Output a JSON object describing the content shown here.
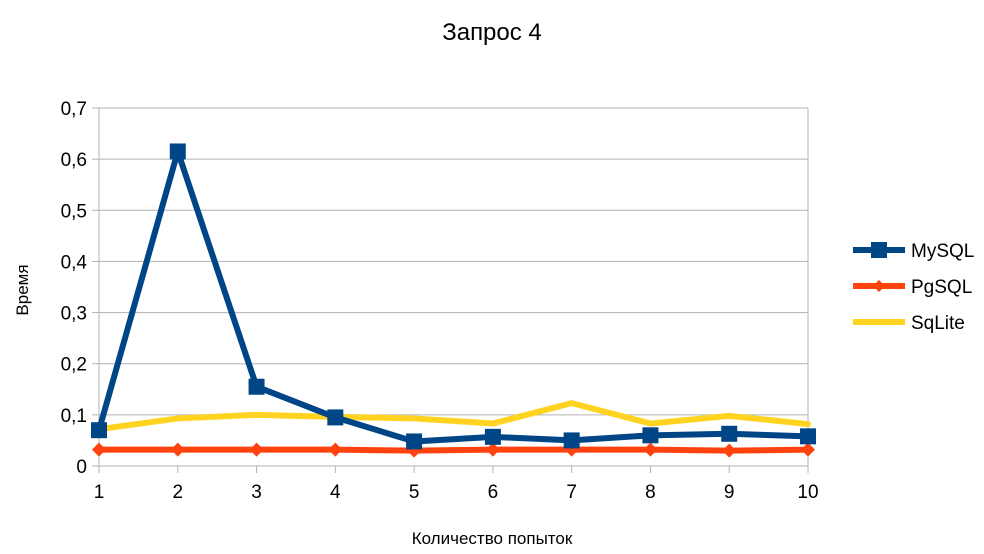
{
  "chart_data": {
    "type": "line",
    "title": "Запрос 4",
    "xlabel": "Количество попыток",
    "ylabel": "Время",
    "x": [
      1,
      2,
      3,
      4,
      5,
      6,
      7,
      8,
      9,
      10
    ],
    "x_tick_labels": [
      "1",
      "2",
      "3",
      "4",
      "5",
      "6",
      "7",
      "8",
      "9",
      "10"
    ],
    "y_tick_labels": [
      "0",
      "0,1",
      "0,2",
      "0,3",
      "0,4",
      "0,5",
      "0,6",
      "0,7"
    ],
    "ylim": [
      0,
      0.7
    ],
    "grid": "horizontal",
    "legend_position": "right",
    "series": [
      {
        "name": "MySQL",
        "color": "#004586",
        "marker": "square",
        "values": [
          0.07,
          0.615,
          0.155,
          0.095,
          0.048,
          0.057,
          0.05,
          0.06,
          0.063,
          0.058
        ]
      },
      {
        "name": "PgSQL",
        "color": "#ff420e",
        "marker": "diamond",
        "values": [
          0.032,
          0.032,
          0.032,
          0.032,
          0.03,
          0.032,
          0.032,
          0.032,
          0.03,
          0.032
        ]
      },
      {
        "name": "SqLite",
        "color": "#ffd320",
        "marker": "none",
        "values": [
          0.072,
          0.093,
          0.1,
          0.096,
          0.093,
          0.083,
          0.123,
          0.083,
          0.098,
          0.082
        ]
      }
    ]
  }
}
